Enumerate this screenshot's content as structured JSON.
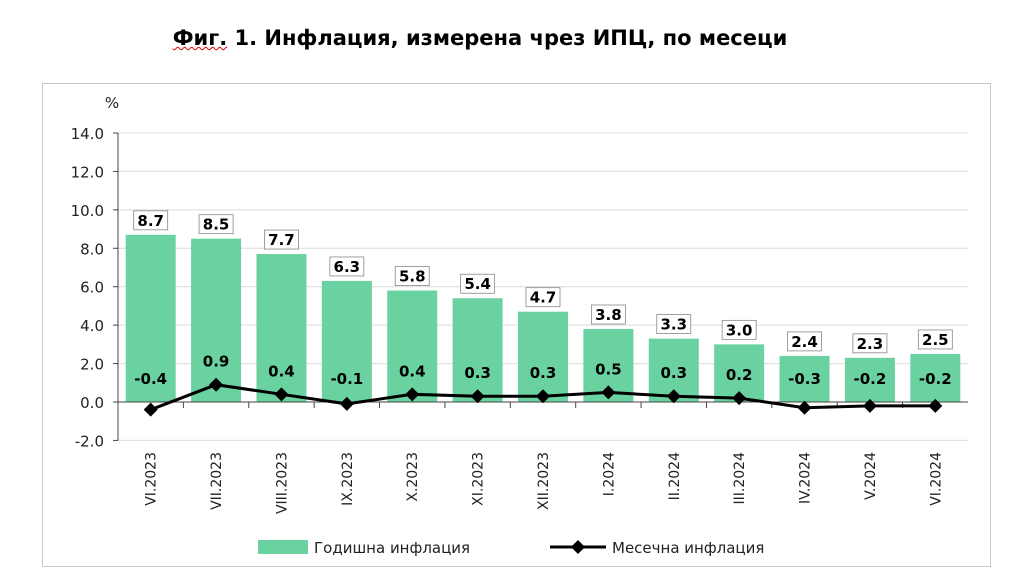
{
  "title_prefix": "Фиг.",
  "title_rest": " 1. Инфлация, измерена чрез ИПЦ, по месеци",
  "chart_data": {
    "type": "bar+line",
    "title": "Фиг. 1. Инфлация, измерена чрез ИПЦ, по месеци",
    "ylabel": "%",
    "ylim": [
      -2,
      14
    ],
    "yticks": [
      "-2.0",
      "0.0",
      "2.0",
      "4.0",
      "6.0",
      "8.0",
      "10.0",
      "12.0",
      "14.0"
    ],
    "grid": true,
    "legend_position": "bottom",
    "categories": [
      "VI.2023",
      "VII.2023",
      "VIII.2023",
      "IX.2023",
      "X.2023",
      "XI.2023",
      "XII.2023",
      "I.2024",
      "II.2024",
      "III.2024",
      "IV.2024",
      "V.2024",
      "VI.2024"
    ],
    "series": [
      {
        "name": "Годишна инфлация",
        "type": "bar",
        "color": "#69d2a0",
        "values": [
          8.7,
          8.5,
          7.7,
          6.3,
          5.8,
          5.4,
          4.7,
          3.8,
          3.3,
          3.0,
          2.4,
          2.3,
          2.5
        ]
      },
      {
        "name": "Месечна инфлация",
        "type": "line",
        "color": "#000000",
        "values": [
          -0.4,
          0.9,
          0.4,
          -0.1,
          0.4,
          0.3,
          0.3,
          0.5,
          0.3,
          0.2,
          -0.3,
          -0.2,
          -0.2
        ]
      }
    ]
  }
}
